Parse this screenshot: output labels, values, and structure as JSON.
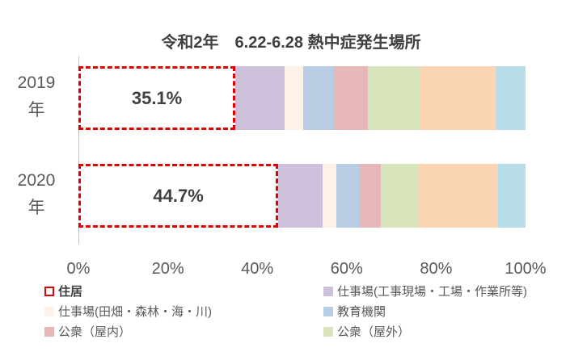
{
  "chart_data": {
    "type": "stacked_bar_horizontal",
    "title": "令和2年　6.22-6.28 熱中症発生場所",
    "categories": [
      "2019\n年",
      "2020\n年"
    ],
    "series": [
      {
        "name": "住居",
        "color": "#ffffff",
        "border": "#e00000",
        "values": [
          35.1,
          44.7
        ],
        "value_labels": [
          "35.1%",
          "44.7%"
        ]
      },
      {
        "name": "仕事場(工事現場・工場・作業所等)",
        "color": "#ccc0da",
        "values": [
          11.0,
          10.0
        ]
      },
      {
        "name": "仕事場(田畑・森林・海・川)",
        "color": "#fdf1e8",
        "values": [
          4.2,
          2.9
        ]
      },
      {
        "name": "教育機関",
        "color": "#b8cce4",
        "values": [
          6.8,
          5.3
        ]
      },
      {
        "name": "公衆（屋内）",
        "color": "#e6b9b8",
        "values": [
          7.6,
          4.8
        ]
      },
      {
        "name": "公衆（屋外）",
        "color": "#d7e4bc",
        "values": [
          11.8,
          8.4
        ]
      },
      {
        "color": "#fcd5b4",
        "values": [
          16.8,
          17.8
        ]
      },
      {
        "color": "#b7dee8",
        "values": [
          6.7,
          6.1
        ]
      }
    ],
    "xlim": [
      0,
      100
    ],
    "xticks": [
      {
        "value": 0,
        "label": "0%"
      },
      {
        "value": 20,
        "label": "20%"
      },
      {
        "value": 40,
        "label": "40%"
      },
      {
        "value": 60,
        "label": "60%"
      },
      {
        "value": 80,
        "label": "80%"
      },
      {
        "value": 100,
        "label": "100%"
      }
    ],
    "grid": false
  }
}
